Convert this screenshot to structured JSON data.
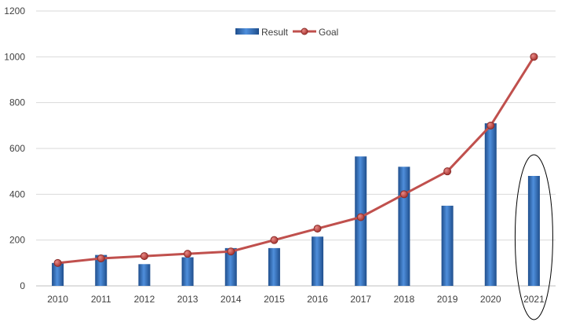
{
  "chart_data": {
    "type": "bar",
    "categories": [
      "2010",
      "2011",
      "2012",
      "2013",
      "2014",
      "2015",
      "2016",
      "2017",
      "2018",
      "2019",
      "2020",
      "2021"
    ],
    "series": [
      {
        "name": "Result",
        "type": "bar",
        "color": "#3a78c6",
        "values": [
          100,
          135,
          95,
          125,
          165,
          165,
          215,
          565,
          520,
          350,
          710,
          480
        ]
      },
      {
        "name": "Goal",
        "type": "line",
        "color": "#c0504d",
        "values": [
          100,
          120,
          130,
          140,
          150,
          200,
          250,
          300,
          400,
          500,
          700,
          1000
        ]
      }
    ],
    "ylim": [
      0,
      1200
    ],
    "yticks": [
      "0",
      "200",
      "400",
      "600",
      "800",
      "1000",
      "1200"
    ],
    "grid": true,
    "legend_position": "top-center",
    "highlight": {
      "category": "2021",
      "shape": "ellipse"
    }
  }
}
